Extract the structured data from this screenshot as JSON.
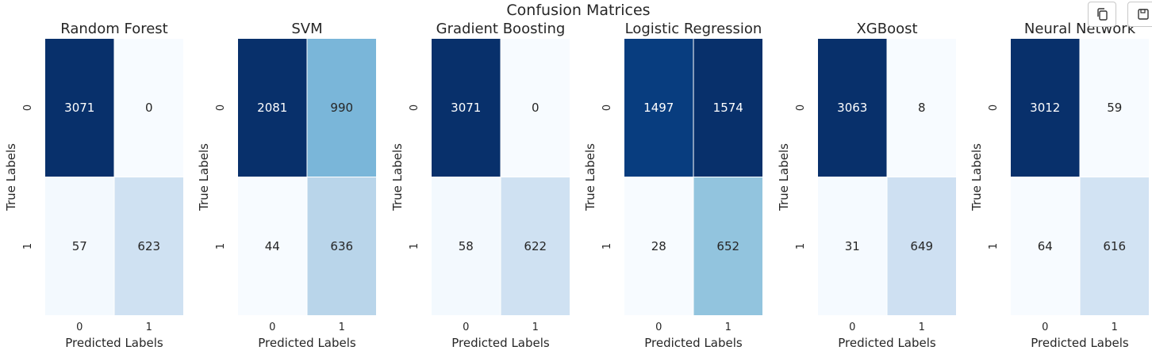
{
  "figure": {
    "title": "Confusion Matrices"
  },
  "toolbar": {
    "copy_icon": "copy-icon",
    "save_icon": "save-icon"
  },
  "chart_data": [
    {
      "type": "heatmap",
      "title": "Random Forest",
      "xlabel": "Predicted Labels",
      "ylabel": "True Labels",
      "x_ticks": [
        "0",
        "1"
      ],
      "y_ticks": [
        "0",
        "1"
      ],
      "colormap": "Blues",
      "matrix": [
        [
          3071,
          0
        ],
        [
          57,
          623
        ]
      ]
    },
    {
      "type": "heatmap",
      "title": "SVM",
      "xlabel": "Predicted Labels",
      "ylabel": "True Labels",
      "x_ticks": [
        "0",
        "1"
      ],
      "y_ticks": [
        "0",
        "1"
      ],
      "colormap": "Blues",
      "matrix": [
        [
          2081,
          990
        ],
        [
          44,
          636
        ]
      ]
    },
    {
      "type": "heatmap",
      "title": "Gradient Boosting",
      "xlabel": "Predicted Labels",
      "ylabel": "True Labels",
      "x_ticks": [
        "0",
        "1"
      ],
      "y_ticks": [
        "0",
        "1"
      ],
      "colormap": "Blues",
      "matrix": [
        [
          3071,
          0
        ],
        [
          58,
          622
        ]
      ]
    },
    {
      "type": "heatmap",
      "title": "Logistic Regression",
      "xlabel": "Predicted Labels",
      "ylabel": "True Labels",
      "x_ticks": [
        "0",
        "1"
      ],
      "y_ticks": [
        "0",
        "1"
      ],
      "colormap": "Blues",
      "matrix": [
        [
          1497,
          1574
        ],
        [
          28,
          652
        ]
      ]
    },
    {
      "type": "heatmap",
      "title": "XGBoost",
      "xlabel": "Predicted Labels",
      "ylabel": "True Labels",
      "x_ticks": [
        "0",
        "1"
      ],
      "y_ticks": [
        "0",
        "1"
      ],
      "colormap": "Blues",
      "matrix": [
        [
          3063,
          8
        ],
        [
          31,
          649
        ]
      ]
    },
    {
      "type": "heatmap",
      "title": "Neural Network",
      "xlabel": "Predicted Labels",
      "ylabel": "True Labels",
      "x_ticks": [
        "0",
        "1"
      ],
      "y_ticks": [
        "0",
        "1"
      ],
      "colormap": "Blues",
      "matrix": [
        [
          3012,
          59
        ],
        [
          64,
          616
        ]
      ]
    }
  ]
}
